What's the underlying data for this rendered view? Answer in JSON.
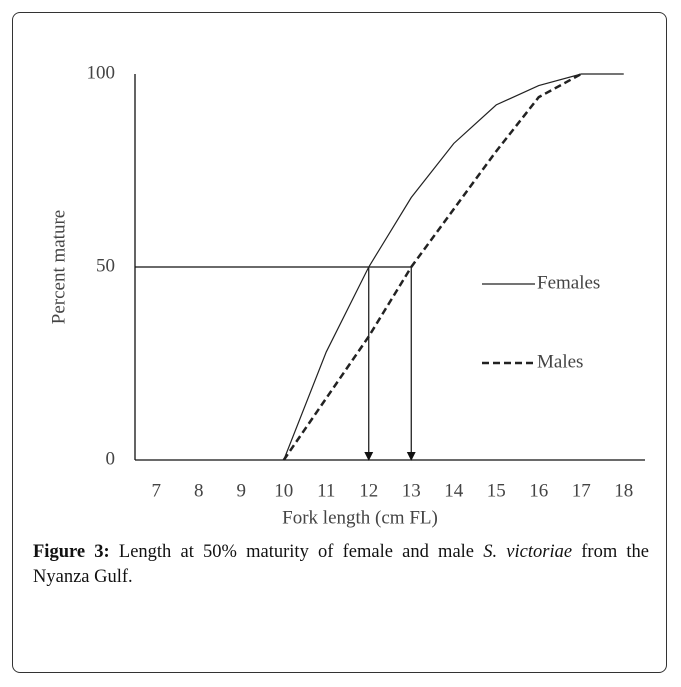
{
  "chart_data": {
    "type": "line",
    "ylabel": "Percent mature",
    "xlabel": "Fork length (cm FL)",
    "categories": [
      "7",
      "8",
      "9",
      "10",
      "11",
      "12",
      "13",
      "14",
      "15",
      "16",
      "17",
      "18"
    ],
    "series": [
      {
        "name": "Females",
        "color": "#222222",
        "dash": "solid",
        "values": [
          null,
          null,
          null,
          0,
          28,
          50,
          68,
          82,
          92,
          97,
          100,
          100
        ]
      },
      {
        "name": "Males",
        "color": "#222222",
        "dash": "dashed",
        "values": [
          null,
          null,
          null,
          0,
          16,
          32,
          50,
          65,
          80,
          94,
          100,
          null
        ]
      }
    ],
    "ylim": [
      0,
      100
    ],
    "yticks": [
      0,
      50,
      100
    ],
    "grid": false
  },
  "caption": {
    "label": "Figure 3:",
    "parts": [
      "Length at 50% maturity of female and male ",
      "S. victoriae",
      " from the Nyanza Gulf."
    ]
  }
}
